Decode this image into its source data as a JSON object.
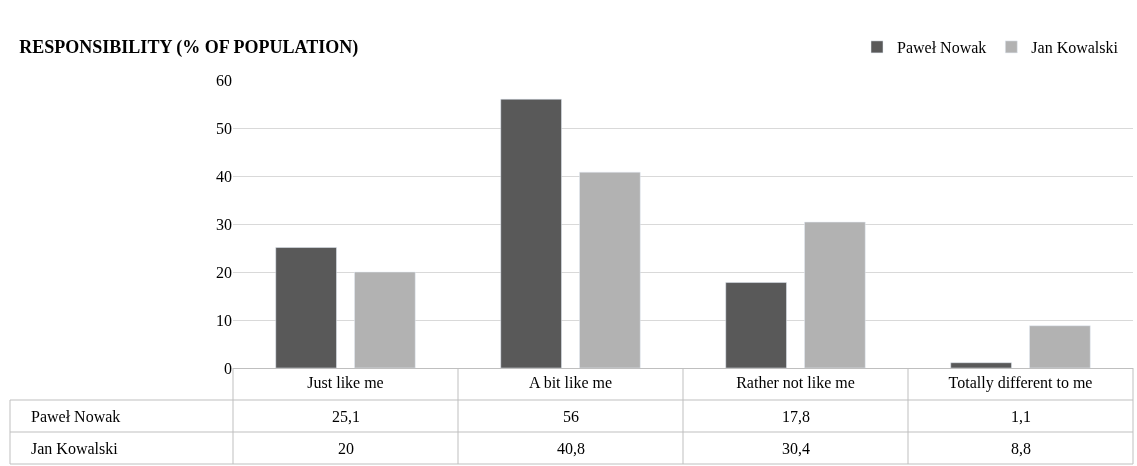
{
  "chart_data": {
    "type": "bar",
    "title": "RESPONSIBILITY (% OF POPULATION)",
    "categories": [
      "Just like me",
      "A bit like me",
      "Rather not like me",
      "Totally different to me"
    ],
    "series": [
      {
        "name": "Paweł Nowak",
        "color": "#595959",
        "values": [
          25.1,
          56,
          17.8,
          1.1
        ],
        "value_labels": [
          "25,1",
          "56",
          "17,8",
          "1,1"
        ]
      },
      {
        "name": "Jan Kowalski",
        "color": "#b2b2b2",
        "values": [
          20,
          40.8,
          30.4,
          8.8
        ],
        "value_labels": [
          "20",
          "40,8",
          "30,4",
          "8,8"
        ]
      }
    ],
    "ylim": [
      0,
      60
    ],
    "yticks": [
      0,
      10,
      20,
      30,
      40,
      50,
      60
    ],
    "grid": "y",
    "legend": "top right"
  }
}
